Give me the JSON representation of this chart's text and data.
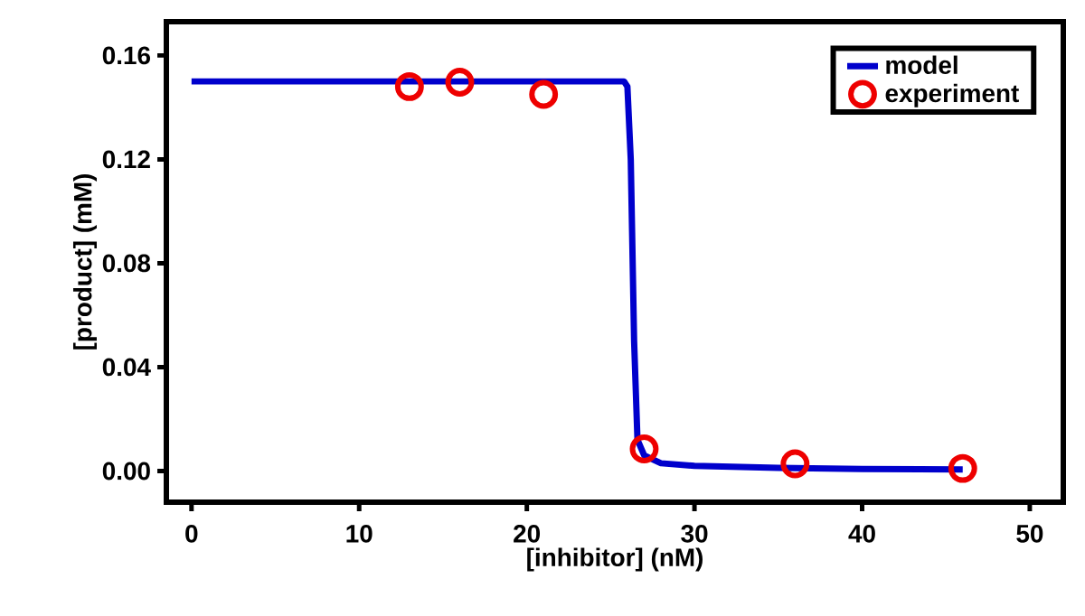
{
  "chart_data": {
    "type": "line",
    "xlabel": "[inhibitor] (nM)",
    "ylabel": "[product] (mM)",
    "xlim": [
      -1.5,
      52
    ],
    "ylim": [
      -0.012,
      0.173
    ],
    "xticks": [
      0,
      10,
      20,
      30,
      40,
      50
    ],
    "yticks": [
      {
        "value": 0,
        "label": "0.00"
      },
      {
        "value": 0.04,
        "label": "0.04"
      },
      {
        "value": 0.08,
        "label": "0.08"
      },
      {
        "value": 0.12,
        "label": "0.12"
      },
      {
        "value": 0.16,
        "label": "0.16"
      }
    ],
    "legend": "top right",
    "grid": false,
    "series": [
      {
        "name": "model",
        "color": "#0000cc",
        "marker": "none",
        "x": [
          0,
          25.8,
          26.0,
          26.2,
          26.4,
          26.6,
          27,
          28,
          30,
          35,
          40,
          46
        ],
        "values": [
          0.15,
          0.15,
          0.148,
          0.12,
          0.05,
          0.012,
          0.006,
          0.003,
          0.002,
          0.0012,
          0.0008,
          0.0006
        ]
      },
      {
        "name": "experiment",
        "type": "scatter",
        "color": "#ee0000",
        "marker": "circle",
        "x": [
          13,
          16,
          21,
          27,
          36,
          46
        ],
        "values": [
          0.148,
          0.1497,
          0.145,
          0.0085,
          0.0028,
          0.001
        ]
      }
    ]
  }
}
